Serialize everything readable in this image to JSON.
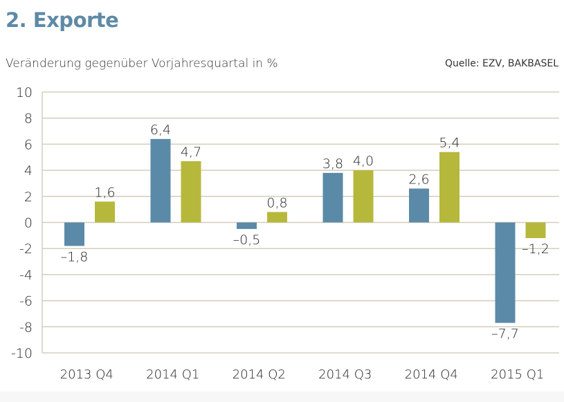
{
  "title": "2. Exporte",
  "source": "Quelle: EZV, BAKBASEL",
  "colors": {
    "title": "#5e8aa6",
    "series1": "#5b8aa8",
    "series2": "#b6b83b",
    "grid": "#d4cdbb"
  },
  "chart_data": {
    "type": "bar",
    "ylabel": "Veränderung gegenüber Vorjahresquartal in %",
    "categories": [
      "2013 Q4",
      "2014 Q1",
      "2014 Q2",
      "2014 Q3",
      "2014 Q4",
      "2015 Q1"
    ],
    "series": [
      {
        "values": [
          -1.8,
          6.4,
          -0.5,
          3.8,
          2.6,
          -7.7
        ],
        "labels": [
          "–1,8",
          "6,4",
          "–0,5",
          "3,8",
          "2,6",
          "–7,7"
        ]
      },
      {
        "values": [
          1.6,
          4.7,
          0.8,
          4.0,
          5.4,
          -1.2
        ],
        "labels": [
          "1,6",
          "4,7",
          "0,8",
          "4,0",
          "5,4",
          "–1,2"
        ]
      }
    ],
    "ylim": [
      -10,
      10
    ],
    "yticks": [
      10,
      8,
      6,
      4,
      2,
      0,
      -2,
      -4,
      -6,
      -8,
      -10
    ],
    "ytick_labels": [
      "10",
      "8",
      "6",
      "4",
      "2",
      "0",
      "-2",
      "-4",
      "-6",
      "-8",
      "-10"
    ],
    "grid": true
  }
}
